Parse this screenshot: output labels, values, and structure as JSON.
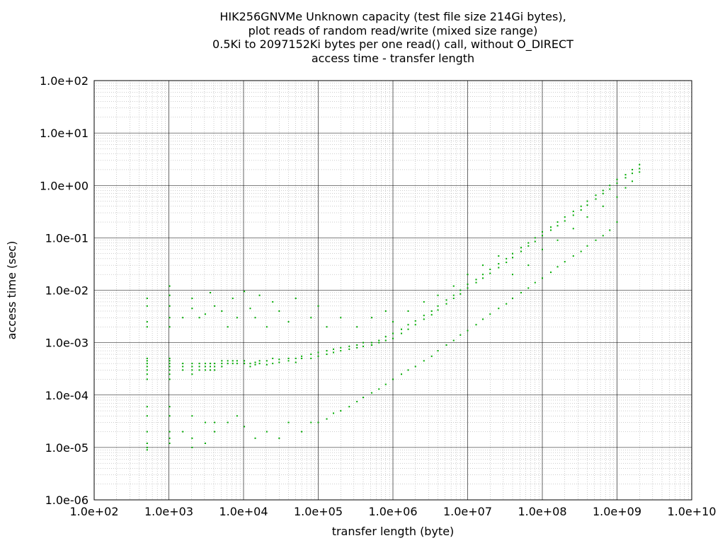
{
  "chart_data": {
    "type": "scatter",
    "title_lines": [
      "HIK256GNVMe Unknown capacity (test file size 214Gi bytes),",
      "plot reads of random read/write (mixed size range)",
      "0.5Ki to 2097152Ki bytes per one read() call, without O_DIRECT",
      "access time - transfer length"
    ],
    "xlabel": "transfer length (byte)",
    "ylabel": "access time (sec)",
    "x_scale": "log",
    "y_scale": "log",
    "xlim": [
      100,
      10000000000
    ],
    "ylim": [
      1e-06,
      100
    ],
    "x_ticks": [
      "1.0e+02",
      "1.0e+03",
      "1.0e+04",
      "1.0e+05",
      "1.0e+06",
      "1.0e+07",
      "1.0e+08",
      "1.0e+09",
      "1.0e+10"
    ],
    "y_ticks": [
      "1.0e-06",
      "1.0e-05",
      "1.0e-04",
      "1.0e-03",
      "1.0e-02",
      "1.0e-01",
      "1.0e+00",
      "1.0e+01",
      "1.0e+02"
    ],
    "grid": true,
    "series_color": "#00aa00",
    "points": [
      [
        512,
        9e-06
      ],
      [
        512,
        1e-05
      ],
      [
        512,
        1.2e-05
      ],
      [
        512,
        2e-05
      ],
      [
        512,
        4e-05
      ],
      [
        512,
        6e-05
      ],
      [
        512,
        0.0002
      ],
      [
        512,
        0.00025
      ],
      [
        512,
        0.0003
      ],
      [
        512,
        0.00035
      ],
      [
        512,
        0.0004
      ],
      [
        512,
        0.00045
      ],
      [
        512,
        0.0005
      ],
      [
        512,
        0.002
      ],
      [
        512,
        0.0025
      ],
      [
        512,
        0.005
      ],
      [
        512,
        0.007
      ],
      [
        1024,
        1.2e-05
      ],
      [
        1024,
        1.5e-05
      ],
      [
        1024,
        2e-05
      ],
      [
        1024,
        4e-05
      ],
      [
        1024,
        6e-05
      ],
      [
        1024,
        0.0002
      ],
      [
        1024,
        0.00025
      ],
      [
        1024,
        0.0003
      ],
      [
        1024,
        0.00035
      ],
      [
        1024,
        0.0004
      ],
      [
        1024,
        0.00045
      ],
      [
        1024,
        0.0005
      ],
      [
        1024,
        0.002
      ],
      [
        1024,
        0.003
      ],
      [
        1024,
        0.005
      ],
      [
        1024,
        0.008
      ],
      [
        1024,
        0.012
      ],
      [
        1536,
        2e-05
      ],
      [
        1536,
        0.0003
      ],
      [
        1536,
        0.00035
      ],
      [
        1536,
        0.0004
      ],
      [
        1536,
        0.003
      ],
      [
        2048,
        1e-05
      ],
      [
        2048,
        1.5e-05
      ],
      [
        2048,
        4e-05
      ],
      [
        2048,
        0.00025
      ],
      [
        2048,
        0.0003
      ],
      [
        2048,
        0.00035
      ],
      [
        2048,
        0.0004
      ],
      [
        2048,
        0.0045
      ],
      [
        2048,
        0.007
      ],
      [
        2560,
        0.0003
      ],
      [
        2560,
        0.00035
      ],
      [
        2560,
        0.0004
      ],
      [
        2560,
        0.003
      ],
      [
        3072,
        1.2e-05
      ],
      [
        3072,
        3e-05
      ],
      [
        3072,
        0.0003
      ],
      [
        3072,
        0.00035
      ],
      [
        3072,
        0.0004
      ],
      [
        3072,
        0.0035
      ],
      [
        3584,
        0.0003
      ],
      [
        3584,
        0.00035
      ],
      [
        3584,
        0.0004
      ],
      [
        3584,
        0.009
      ],
      [
        4096,
        2e-05
      ],
      [
        4096,
        3e-05
      ],
      [
        4096,
        0.0003
      ],
      [
        4096,
        0.00035
      ],
      [
        4096,
        0.0004
      ],
      [
        4096,
        0.005
      ],
      [
        5120,
        0.00035
      ],
      [
        5120,
        0.0004
      ],
      [
        5120,
        0.00045
      ],
      [
        5120,
        0.004
      ],
      [
        6144,
        3e-05
      ],
      [
        6144,
        0.0004
      ],
      [
        6144,
        0.00045
      ],
      [
        6144,
        0.002
      ],
      [
        7168,
        0.0004
      ],
      [
        7168,
        0.00045
      ],
      [
        7168,
        0.007
      ],
      [
        8192,
        4e-05
      ],
      [
        8192,
        0.0004
      ],
      [
        8192,
        0.00045
      ],
      [
        8192,
        0.003
      ],
      [
        10240,
        2.5e-05
      ],
      [
        10240,
        0.0004
      ],
      [
        10240,
        0.00045
      ],
      [
        10240,
        0.0095
      ],
      [
        12288,
        0.00035
      ],
      [
        12288,
        0.0004
      ],
      [
        12288,
        0.0045
      ],
      [
        14336,
        1.5e-05
      ],
      [
        14336,
        0.00038
      ],
      [
        14336,
        0.00042
      ],
      [
        14336,
        0.003
      ],
      [
        16384,
        0.0004
      ],
      [
        16384,
        0.00045
      ],
      [
        16384,
        0.008
      ],
      [
        20480,
        2e-05
      ],
      [
        20480,
        0.00038
      ],
      [
        20480,
        0.00045
      ],
      [
        20480,
        0.002
      ],
      [
        24576,
        0.0004
      ],
      [
        24576,
        0.0005
      ],
      [
        24576,
        0.006
      ],
      [
        30000,
        1.5e-05
      ],
      [
        30000,
        0.00042
      ],
      [
        30000,
        0.00048
      ],
      [
        30000,
        0.004
      ],
      [
        40000,
        3e-05
      ],
      [
        40000,
        0.00045
      ],
      [
        40000,
        0.0005
      ],
      [
        40000,
        0.0025
      ],
      [
        50000,
        0.00042
      ],
      [
        50000,
        0.0005
      ],
      [
        50000,
        0.007
      ],
      [
        60000,
        2e-05
      ],
      [
        60000,
        0.0005
      ],
      [
        60000,
        0.00055
      ],
      [
        80000,
        3e-05
      ],
      [
        80000,
        0.0005
      ],
      [
        80000,
        0.0006
      ],
      [
        80000,
        0.003
      ],
      [
        100000,
        3e-05
      ],
      [
        100000,
        0.00055
      ],
      [
        100000,
        0.00065
      ],
      [
        100000,
        0.005
      ],
      [
        130000,
        3.5e-05
      ],
      [
        130000,
        0.0006
      ],
      [
        130000,
        0.0007
      ],
      [
        130000,
        0.002
      ],
      [
        160000,
        4.5e-05
      ],
      [
        160000,
        0.00065
      ],
      [
        160000,
        0.00075
      ],
      [
        200000,
        5e-05
      ],
      [
        200000,
        0.0007
      ],
      [
        200000,
        0.0008
      ],
      [
        200000,
        0.003
      ],
      [
        260000,
        6e-05
      ],
      [
        260000,
        0.00075
      ],
      [
        260000,
        0.00085
      ],
      [
        330000,
        7.5e-05
      ],
      [
        330000,
        0.0008
      ],
      [
        330000,
        0.0009
      ],
      [
        330000,
        0.002
      ],
      [
        400000,
        9e-05
      ],
      [
        400000,
        0.00085
      ],
      [
        400000,
        0.001
      ],
      [
        520000,
        0.00011
      ],
      [
        520000,
        0.0009
      ],
      [
        520000,
        0.001
      ],
      [
        520000,
        0.003
      ],
      [
        650000,
        0.00013
      ],
      [
        650000,
        0.001
      ],
      [
        650000,
        0.0011
      ],
      [
        800000,
        0.00016
      ],
      [
        800000,
        0.0011
      ],
      [
        800000,
        0.0013
      ],
      [
        800000,
        0.004
      ],
      [
        1000000,
        0.0002
      ],
      [
        1000000,
        0.0012
      ],
      [
        1000000,
        0.0015
      ],
      [
        1000000,
        0.0025
      ],
      [
        1300000,
        0.00025
      ],
      [
        1300000,
        0.0015
      ],
      [
        1300000,
        0.0018
      ],
      [
        1600000,
        0.0003
      ],
      [
        1600000,
        0.0018
      ],
      [
        1600000,
        0.0022
      ],
      [
        1600000,
        0.004
      ],
      [
        2000000,
        0.00035
      ],
      [
        2000000,
        0.0022
      ],
      [
        2000000,
        0.0026
      ],
      [
        2600000,
        0.00045
      ],
      [
        2600000,
        0.0028
      ],
      [
        2600000,
        0.0033
      ],
      [
        2600000,
        0.006
      ],
      [
        3300000,
        0.00055
      ],
      [
        3300000,
        0.0034
      ],
      [
        3300000,
        0.004
      ],
      [
        4000000,
        0.0007
      ],
      [
        4000000,
        0.0042
      ],
      [
        4000000,
        0.005
      ],
      [
        4000000,
        0.008
      ],
      [
        5200000,
        0.0009
      ],
      [
        5200000,
        0.0055
      ],
      [
        5200000,
        0.0065
      ],
      [
        6500000,
        0.0011
      ],
      [
        6500000,
        0.007
      ],
      [
        6500000,
        0.008
      ],
      [
        6500000,
        0.012
      ],
      [
        8000000,
        0.0014
      ],
      [
        8000000,
        0.0085
      ],
      [
        8000000,
        0.01
      ],
      [
        10000000,
        0.0017
      ],
      [
        10000000,
        0.011
      ],
      [
        10000000,
        0.013
      ],
      [
        10000000,
        0.02
      ],
      [
        13000000,
        0.0022
      ],
      [
        13000000,
        0.014
      ],
      [
        13000000,
        0.016
      ],
      [
        16000000,
        0.0028
      ],
      [
        16000000,
        0.017
      ],
      [
        16000000,
        0.02
      ],
      [
        16000000,
        0.03
      ],
      [
        20000000,
        0.0035
      ],
      [
        20000000,
        0.021
      ],
      [
        20000000,
        0.025
      ],
      [
        26000000,
        0.0045
      ],
      [
        26000000,
        0.027
      ],
      [
        26000000,
        0.032
      ],
      [
        26000000,
        0.045
      ],
      [
        33000000,
        0.0055
      ],
      [
        33000000,
        0.034
      ],
      [
        33000000,
        0.04
      ],
      [
        40000000,
        0.007
      ],
      [
        40000000,
        0.042
      ],
      [
        40000000,
        0.05
      ],
      [
        40000000,
        0.02
      ],
      [
        52000000,
        0.009
      ],
      [
        52000000,
        0.055
      ],
      [
        52000000,
        0.065
      ],
      [
        65000000,
        0.011
      ],
      [
        65000000,
        0.07
      ],
      [
        65000000,
        0.08
      ],
      [
        65000000,
        0.03
      ],
      [
        80000000,
        0.014
      ],
      [
        80000000,
        0.085
      ],
      [
        80000000,
        0.1
      ],
      [
        100000000,
        0.017
      ],
      [
        100000000,
        0.11
      ],
      [
        100000000,
        0.13
      ],
      [
        100000000,
        0.06
      ],
      [
        130000000,
        0.022
      ],
      [
        130000000,
        0.14
      ],
      [
        130000000,
        0.16
      ],
      [
        160000000,
        0.028
      ],
      [
        160000000,
        0.17
      ],
      [
        160000000,
        0.2
      ],
      [
        160000000,
        0.09
      ],
      [
        200000000,
        0.035
      ],
      [
        200000000,
        0.21
      ],
      [
        200000000,
        0.25
      ],
      [
        260000000,
        0.045
      ],
      [
        260000000,
        0.27
      ],
      [
        260000000,
        0.32
      ],
      [
        260000000,
        0.15
      ],
      [
        330000000,
        0.055
      ],
      [
        330000000,
        0.34
      ],
      [
        330000000,
        0.4
      ],
      [
        400000000,
        0.07
      ],
      [
        400000000,
        0.42
      ],
      [
        400000000,
        0.5
      ],
      [
        400000000,
        0.25
      ],
      [
        520000000,
        0.09
      ],
      [
        520000000,
        0.55
      ],
      [
        520000000,
        0.65
      ],
      [
        650000000,
        0.11
      ],
      [
        650000000,
        0.7
      ],
      [
        650000000,
        0.8
      ],
      [
        650000000,
        0.4
      ],
      [
        800000000,
        0.14
      ],
      [
        800000000,
        0.85
      ],
      [
        800000000,
        1.0
      ],
      [
        1000000000,
        0.2
      ],
      [
        1000000000,
        1.1
      ],
      [
        1000000000,
        1.3
      ],
      [
        1000000000,
        0.6
      ],
      [
        1300000000,
        1.4
      ],
      [
        1300000000,
        1.6
      ],
      [
        1300000000,
        0.9
      ],
      [
        1600000000,
        1.7
      ],
      [
        1600000000,
        2.0
      ],
      [
        1600000000,
        1.2
      ],
      [
        2000000000,
        2.1
      ],
      [
        2000000000,
        2.5
      ],
      [
        2000000000,
        1.8
      ]
    ]
  }
}
